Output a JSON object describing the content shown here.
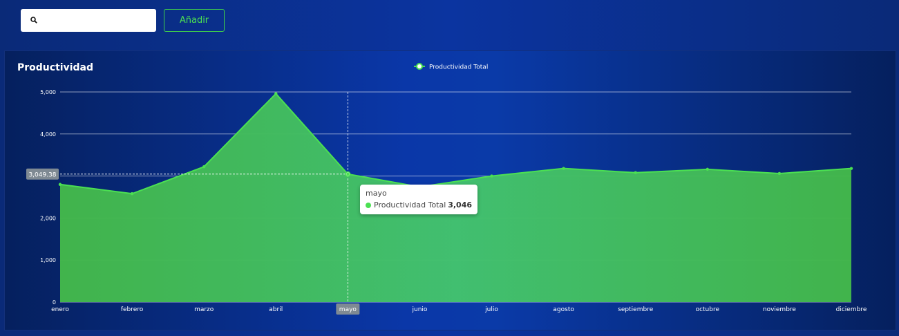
{
  "toolbar": {
    "search_value": "",
    "add_label": "Añadir"
  },
  "card": {
    "title": "Productividad"
  },
  "tooltip": {
    "title": "mayo",
    "series": "Productividad Total",
    "value": "3,046"
  },
  "crosshair_label": "3,049.38",
  "colors": {
    "series": "#4be052",
    "area": "#45c255",
    "button_accent": "#3fd14a"
  },
  "chart_data": {
    "type": "area",
    "title": "",
    "xlabel": "",
    "ylabel": "",
    "ylim": [
      0,
      5000
    ],
    "yticks": [
      0,
      1000,
      2000,
      3000,
      4000,
      5000
    ],
    "ytick_labels": [
      "0",
      "1,000",
      "2,000",
      "",
      "4,000",
      "5,000"
    ],
    "categories": [
      "enero",
      "febrero",
      "marzo",
      "abril",
      "mayo",
      "junio",
      "julio",
      "agosto",
      "septiembre",
      "octubre",
      "noviembre",
      "diciembre"
    ],
    "series": [
      {
        "name": "Productividad Total",
        "values": [
          2800,
          2580,
          3220,
          4960,
          3046,
          2740,
          3000,
          3180,
          3080,
          3160,
          3060,
          3180
        ]
      }
    ],
    "highlight_category": "mayo",
    "legend": "top-center",
    "grid": true
  }
}
